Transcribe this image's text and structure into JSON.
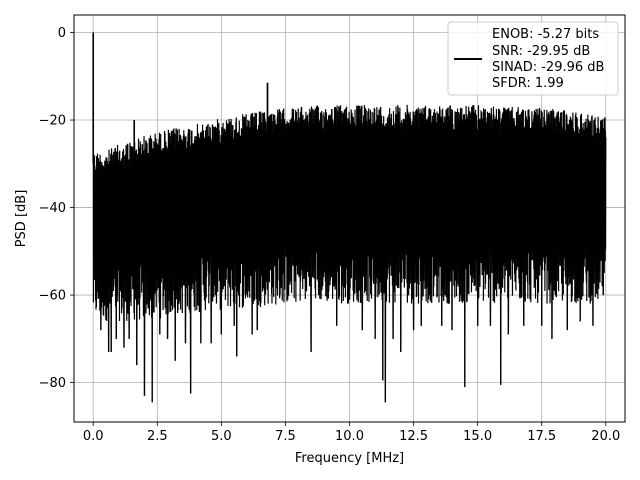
{
  "chart_data": {
    "type": "line",
    "title": "",
    "xlabel": "Frequency [MHz]",
    "ylabel": "PSD [dB]",
    "xlim": [
      -0.75,
      20.75
    ],
    "ylim": [
      -89,
      4
    ],
    "xticks": [
      0.0,
      2.5,
      5.0,
      7.5,
      10.0,
      12.5,
      15.0,
      17.5,
      20.0
    ],
    "xtick_labels": [
      "0.0",
      "2.5",
      "5.0",
      "7.5",
      "10.0",
      "12.5",
      "15.0",
      "17.5",
      "20.0"
    ],
    "yticks": [
      0,
      -20,
      -40,
      -60,
      -80
    ],
    "ytick_labels": [
      "0",
      "−20",
      "−40",
      "−60",
      "−80"
    ],
    "grid": true,
    "legend_position": "top-right",
    "series": [
      {
        "name": "",
        "color": "#000000",
        "upper_envelope": {
          "x": [
            0.0,
            0.5,
            1.0,
            2.0,
            3.0,
            4.0,
            5.0,
            6.0,
            7.0,
            8.0,
            9.0,
            10.0,
            11.0,
            12.0,
            13.0,
            14.0,
            15.0,
            16.0,
            17.0,
            18.0,
            19.0,
            20.0
          ],
          "y": [
            -27,
            -27,
            -25.5,
            -23.5,
            -22,
            -21,
            -19.5,
            -18.5,
            -17.5,
            -17,
            -16.5,
            -16.5,
            -16.5,
            -16.5,
            -16.5,
            -16.5,
            -16.5,
            -17,
            -17,
            -17.5,
            -18,
            -19
          ]
        },
        "lower_typical": {
          "x": [
            0.0,
            2.0,
            4.0,
            6.0,
            8.0,
            10.0,
            12.0,
            14.0,
            16.0,
            18.0,
            20.0
          ],
          "y": [
            -62,
            -62,
            -60,
            -59,
            -58,
            -58,
            -58,
            -58,
            -58,
            -58,
            -58
          ]
        },
        "peaks": [
          {
            "x": 0.0,
            "y": 0
          },
          {
            "x": 1.6,
            "y": -20
          },
          {
            "x": 6.8,
            "y": -11.5
          }
        ],
        "dips": [
          {
            "x": 0.3,
            "y": -68
          },
          {
            "x": 0.6,
            "y": -73
          },
          {
            "x": 0.7,
            "y": -73
          },
          {
            "x": 0.9,
            "y": -70
          },
          {
            "x": 1.2,
            "y": -72
          },
          {
            "x": 1.4,
            "y": -70
          },
          {
            "x": 1.7,
            "y": -76
          },
          {
            "x": 2.0,
            "y": -83
          },
          {
            "x": 2.3,
            "y": -84.5
          },
          {
            "x": 2.6,
            "y": -69
          },
          {
            "x": 2.9,
            "y": -70
          },
          {
            "x": 3.2,
            "y": -75
          },
          {
            "x": 3.6,
            "y": -71
          },
          {
            "x": 3.8,
            "y": -82.5
          },
          {
            "x": 4.2,
            "y": -71
          },
          {
            "x": 4.6,
            "y": -71
          },
          {
            "x": 5.0,
            "y": -69
          },
          {
            "x": 5.5,
            "y": -67
          },
          {
            "x": 5.6,
            "y": -74
          },
          {
            "x": 6.2,
            "y": -69
          },
          {
            "x": 6.4,
            "y": -68
          },
          {
            "x": 8.5,
            "y": -73
          },
          {
            "x": 9.5,
            "y": -67
          },
          {
            "x": 10.5,
            "y": -68
          },
          {
            "x": 11.0,
            "y": -70
          },
          {
            "x": 11.3,
            "y": -79.5
          },
          {
            "x": 11.4,
            "y": -84.5
          },
          {
            "x": 11.7,
            "y": -70
          },
          {
            "x": 12.0,
            "y": -73
          },
          {
            "x": 12.5,
            "y": -68
          },
          {
            "x": 12.8,
            "y": -67
          },
          {
            "x": 13.6,
            "y": -67
          },
          {
            "x": 14.0,
            "y": -68
          },
          {
            "x": 14.5,
            "y": -81
          },
          {
            "x": 15.0,
            "y": -67
          },
          {
            "x": 15.5,
            "y": -67
          },
          {
            "x": 15.9,
            "y": -80.5
          },
          {
            "x": 16.2,
            "y": -69
          },
          {
            "x": 16.8,
            "y": -67
          },
          {
            "x": 17.5,
            "y": -67
          },
          {
            "x": 17.9,
            "y": -70
          },
          {
            "x": 18.5,
            "y": -68
          },
          {
            "x": 19.0,
            "y": -66
          },
          {
            "x": 19.5,
            "y": -67
          },
          {
            "x": 19.9,
            "y": -60
          }
        ]
      }
    ],
    "legend_lines": [
      "ENOB: -5.27 bits",
      "SNR: -29.95 dB",
      "SINAD: -29.96 dB",
      "SFDR: 1.99"
    ]
  }
}
